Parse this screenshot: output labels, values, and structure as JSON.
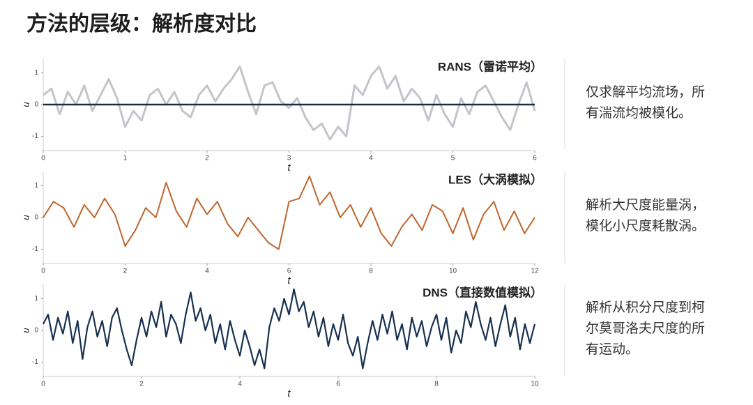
{
  "title": "方法的层级：解析度对比",
  "descriptions": [
    [
      "仅求解平均流场，所",
      "有湍流均被模化。"
    ],
    [
      "解析大尺度能量涡，",
      "模化小尺度耗散涡。"
    ],
    [
      "解析从积分尺度到柯",
      "尔莫哥洛夫尺度的所",
      "有运动。"
    ]
  ],
  "chart_data": [
    {
      "type": "line",
      "title": "RANS（雷诺平均）",
      "xlabel": "t",
      "ylabel": "u",
      "x": [
        0,
        0.1,
        0.2,
        0.3,
        0.4,
        0.5,
        0.6,
        0.7,
        0.8,
        0.9,
        1.0,
        1.1,
        1.2,
        1.3,
        1.4,
        1.5,
        1.6,
        1.7,
        1.8,
        1.9,
        2.0,
        2.1,
        2.2,
        2.3,
        2.4,
        2.5,
        2.6,
        2.7,
        2.8,
        2.9,
        3.0,
        3.1,
        3.2,
        3.3,
        3.4,
        3.5,
        3.6,
        3.7,
        3.8,
        3.9,
        4.0,
        4.1,
        4.2,
        4.3,
        4.4,
        4.5,
        4.6,
        4.7,
        4.8,
        4.9,
        5.0,
        5.1,
        5.2,
        5.3,
        5.4,
        5.5,
        5.6,
        5.7,
        5.8,
        5.9,
        6.0
      ],
      "series": [
        {
          "color": "#c3c4cc",
          "width": 3,
          "values": [
            0.3,
            0.5,
            -0.3,
            0.4,
            0.0,
            0.6,
            -0.2,
            0.3,
            0.8,
            0.2,
            -0.7,
            -0.2,
            -0.5,
            0.3,
            0.5,
            0.0,
            0.4,
            -0.2,
            -0.4,
            0.3,
            0.6,
            0.1,
            0.5,
            0.8,
            1.2,
            0.4,
            -0.3,
            0.6,
            0.7,
            0.1,
            -0.1,
            0.2,
            -0.4,
            -0.8,
            -0.6,
            -1.1,
            -0.7,
            -1.0,
            0.6,
            0.3,
            0.9,
            1.2,
            0.5,
            0.9,
            0.1,
            0.5,
            0.2,
            -0.5,
            0.3,
            -0.3,
            -0.7,
            0.2,
            -0.3,
            0.4,
            0.6,
            0.1,
            -0.4,
            -0.8,
            0.0,
            0.7,
            -0.2
          ]
        },
        {
          "color": "#1b2b40",
          "width": 2.5,
          "values": [
            0,
            0,
            0,
            0,
            0,
            0,
            0,
            0,
            0,
            0,
            0,
            0,
            0,
            0,
            0,
            0,
            0,
            0,
            0,
            0,
            0,
            0,
            0,
            0,
            0,
            0,
            0,
            0,
            0,
            0,
            0,
            0,
            0,
            0,
            0,
            0,
            0,
            0,
            0,
            0,
            0,
            0,
            0,
            0,
            0,
            0,
            0,
            0,
            0,
            0,
            0,
            0,
            0,
            0,
            0,
            0,
            0,
            0,
            0,
            0,
            0
          ]
        }
      ],
      "xlim": [
        0,
        6
      ],
      "xticks": [
        0,
        1,
        2,
        3,
        4,
        5,
        6
      ],
      "ylim": [
        -1.45,
        1.45
      ],
      "yticks": [
        -1,
        0,
        1
      ]
    },
    {
      "type": "line",
      "title": "LES（大涡模拟）",
      "xlabel": "t",
      "ylabel": "u",
      "x": [
        0,
        0.25,
        0.5,
        0.75,
        1.0,
        1.25,
        1.5,
        1.75,
        2.0,
        2.25,
        2.5,
        2.75,
        3.0,
        3.25,
        3.5,
        3.75,
        4.0,
        4.25,
        4.5,
        4.75,
        5.0,
        5.25,
        5.5,
        5.75,
        6.0,
        6.25,
        6.5,
        6.75,
        7.0,
        7.25,
        7.5,
        7.75,
        8.0,
        8.25,
        8.5,
        8.75,
        9.0,
        9.25,
        9.5,
        9.75,
        10.0,
        10.25,
        10.5,
        10.75,
        11.0,
        11.25,
        11.5,
        11.75,
        12.0
      ],
      "series": [
        {
          "color": "#c0652b",
          "width": 2,
          "values": [
            0.0,
            0.5,
            0.3,
            -0.3,
            0.4,
            0.0,
            0.6,
            0.1,
            -0.9,
            -0.4,
            0.3,
            0.0,
            1.1,
            0.2,
            -0.3,
            0.6,
            0.1,
            0.5,
            -0.2,
            -0.6,
            0.0,
            -0.4,
            -0.8,
            -1.0,
            0.5,
            0.6,
            1.3,
            0.4,
            0.8,
            0.0,
            0.4,
            -0.3,
            0.3,
            -0.5,
            -0.9,
            -0.3,
            0.1,
            -0.4,
            0.4,
            0.2,
            -0.5,
            0.3,
            -0.7,
            0.1,
            0.5,
            -0.4,
            0.2,
            -0.5,
            0.0
          ]
        }
      ],
      "xlim": [
        0,
        12
      ],
      "xticks": [
        0,
        2,
        4,
        6,
        8,
        10,
        12
      ],
      "ylim": [
        -1.45,
        1.45
      ],
      "yticks": [
        -1,
        0,
        1
      ]
    },
    {
      "type": "line",
      "title": "DNS（直接数值模拟）",
      "xlabel": "t",
      "ylabel": "u",
      "x": [
        0,
        0.1,
        0.2,
        0.3,
        0.4,
        0.5,
        0.6,
        0.7,
        0.8,
        0.9,
        1.0,
        1.1,
        1.2,
        1.3,
        1.4,
        1.5,
        1.6,
        1.7,
        1.8,
        1.9,
        2.0,
        2.1,
        2.2,
        2.3,
        2.4,
        2.5,
        2.6,
        2.7,
        2.8,
        2.9,
        3.0,
        3.1,
        3.2,
        3.3,
        3.4,
        3.5,
        3.6,
        3.7,
        3.8,
        3.9,
        4.0,
        4.1,
        4.2,
        4.3,
        4.4,
        4.5,
        4.6,
        4.7,
        4.8,
        4.9,
        5.0,
        5.1,
        5.2,
        5.3,
        5.4,
        5.5,
        5.6,
        5.7,
        5.8,
        5.9,
        6.0,
        6.1,
        6.2,
        6.3,
        6.4,
        6.5,
        6.6,
        6.7,
        6.8,
        6.9,
        7.0,
        7.1,
        7.2,
        7.3,
        7.4,
        7.5,
        7.6,
        7.7,
        7.8,
        7.9,
        8.0,
        8.1,
        8.2,
        8.3,
        8.4,
        8.5,
        8.6,
        8.7,
        8.8,
        8.9,
        9.0,
        9.1,
        9.2,
        9.3,
        9.4,
        9.5,
        9.6,
        9.7,
        9.8,
        9.9,
        10.0
      ],
      "series": [
        {
          "color": "#16304f",
          "width": 2.2,
          "values": [
            0.2,
            0.5,
            -0.3,
            0.4,
            -0.1,
            0.6,
            -0.4,
            0.3,
            -0.9,
            0.1,
            0.6,
            -0.2,
            0.3,
            -0.5,
            0.4,
            0.7,
            0.0,
            -0.6,
            -1.1,
            -0.3,
            0.4,
            -0.2,
            0.6,
            0.1,
            0.9,
            -0.2,
            0.5,
            0.2,
            -0.4,
            0.5,
            1.2,
            0.3,
            0.7,
            0.0,
            0.5,
            -0.4,
            0.2,
            -0.6,
            0.3,
            -0.3,
            -0.8,
            0.0,
            -0.5,
            -1.1,
            -0.6,
            -1.2,
            0.1,
            0.7,
            0.3,
            1.0,
            0.5,
            1.3,
            0.6,
            0.9,
            0.1,
            0.6,
            -0.2,
            0.4,
            -0.5,
            0.2,
            -0.3,
            0.5,
            -0.4,
            -0.8,
            -0.2,
            -1.2,
            -0.4,
            0.3,
            -0.3,
            0.5,
            -0.1,
            0.6,
            -0.3,
            0.2,
            -0.6,
            0.4,
            -0.2,
            0.3,
            -0.5,
            0.1,
            0.5,
            -0.3,
            0.4,
            -0.7,
            0.0,
            -0.4,
            0.6,
            0.1,
            0.9,
            0.2,
            -0.3,
            0.4,
            -0.5,
            0.2,
            0.8,
            -0.2,
            0.4,
            -0.6,
            0.2,
            -0.4,
            0.2
          ]
        }
      ],
      "xlim": [
        0,
        10
      ],
      "xticks": [
        0,
        2,
        4,
        6,
        8,
        10
      ],
      "ylim": [
        -1.45,
        1.45
      ],
      "yticks": [
        -1,
        0,
        1
      ]
    }
  ]
}
